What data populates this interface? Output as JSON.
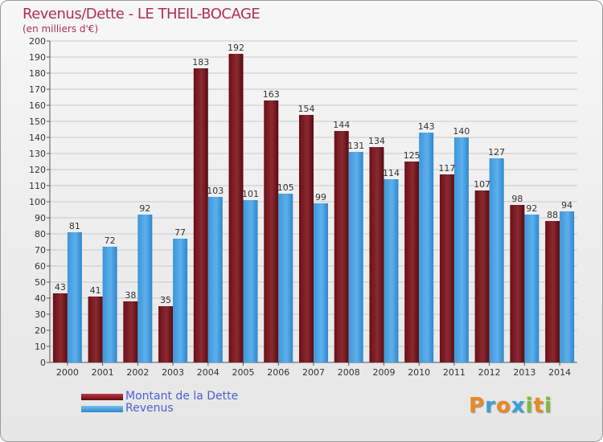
{
  "title": "Revenus/Dette - LE THEIL-BOCAGE",
  "subtitle": "(en milliers d'€)",
  "logo": {
    "text": "Proxiti",
    "letters": [
      "P",
      "r",
      "o",
      "x",
      "i",
      "t",
      "i"
    ],
    "colors": [
      "#e98a22",
      "#3aa0d8",
      "#e98a22",
      "#3aa0d8",
      "#7cbe3a",
      "#e98a22",
      "#7cbe3a"
    ]
  },
  "legend": {
    "items": [
      {
        "label": "Montant de la Dette",
        "color": "#7a1a22"
      },
      {
        "label": "Revenus",
        "color": "#4ba4e4"
      }
    ]
  },
  "chart_data": {
    "type": "bar",
    "title": "Revenus/Dette - LE THEIL-BOCAGE",
    "ylabel": "(en milliers d'€)",
    "xlabel": "",
    "ylim": [
      0,
      200
    ],
    "ytick_step": 10,
    "grid": true,
    "categories": [
      "2000",
      "2001",
      "2002",
      "2003",
      "2004",
      "2005",
      "2006",
      "2007",
      "2008",
      "2009",
      "2010",
      "2011",
      "2012",
      "2013",
      "2014"
    ],
    "series": [
      {
        "name": "Montant de la Dette",
        "values": [
          43,
          41,
          38,
          35,
          183,
          192,
          163,
          154,
          144,
          134,
          125,
          117,
          107,
          98,
          88
        ],
        "color": "#7a1a22"
      },
      {
        "name": "Revenus",
        "values": [
          81,
          72,
          92,
          77,
          103,
          101,
          105,
          99,
          131,
          114,
          143,
          140,
          127,
          92,
          94
        ],
        "color": "#4ba4e4"
      }
    ]
  }
}
